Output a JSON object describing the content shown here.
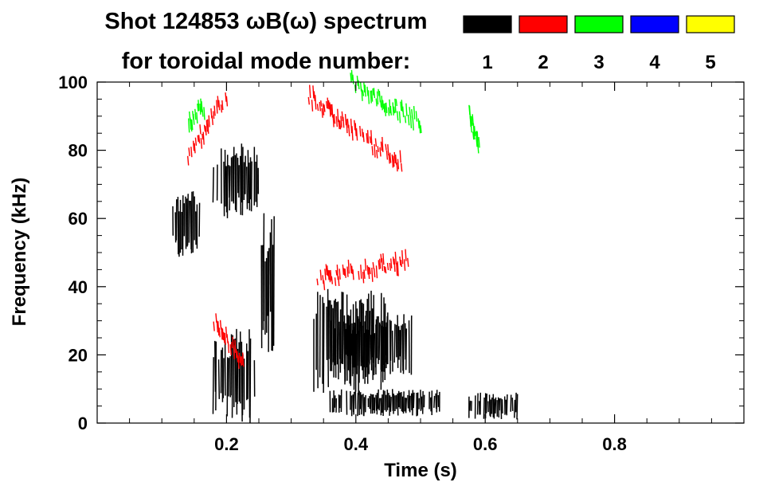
{
  "chart_data": {
    "type": "spectrogram",
    "title_line1": "Shot 124853 ωB(ω) spectrum",
    "title_line2": "for toroidal mode number:",
    "xlabel": "Time (s)",
    "ylabel": "Frequency (kHz)",
    "xlim": [
      0.0,
      1.0
    ],
    "ylim": [
      0,
      100
    ],
    "xticks": [
      0.2,
      0.4,
      0.6,
      0.8
    ],
    "xtick_labels": [
      "0.2",
      "0.4",
      "0.6",
      "0.8"
    ],
    "yticks": [
      0,
      20,
      40,
      60,
      80,
      100
    ],
    "ytick_labels": [
      "0",
      "20",
      "40",
      "60",
      "80",
      "100"
    ],
    "legend_position": "top-right",
    "legend": [
      {
        "mode": "1",
        "color": "#000000"
      },
      {
        "mode": "2",
        "color": "#ff0000"
      },
      {
        "mode": "3",
        "color": "#00ff00"
      },
      {
        "mode": "4",
        "color": "#0000ff"
      },
      {
        "mode": "5",
        "color": "#ffff00"
      }
    ],
    "features": [
      {
        "mode": "1",
        "kind": "band",
        "t": [
          0.115,
          0.16
        ],
        "f": [
          48,
          68
        ]
      },
      {
        "mode": "1",
        "kind": "band",
        "t": [
          0.18,
          0.25
        ],
        "f": [
          60,
          82
        ]
      },
      {
        "mode": "1",
        "kind": "band",
        "t": [
          0.18,
          0.245
        ],
        "f": [
          0,
          28
        ]
      },
      {
        "mode": "1",
        "kind": "band",
        "t": [
          0.25,
          0.275
        ],
        "f": [
          20,
          62
        ]
      },
      {
        "mode": "1",
        "kind": "band",
        "t": [
          0.335,
          0.45
        ],
        "f": [
          8,
          40
        ]
      },
      {
        "mode": "1",
        "kind": "band",
        "t": [
          0.36,
          0.49
        ],
        "f": [
          14,
          32
        ]
      },
      {
        "mode": "1",
        "kind": "band",
        "t": [
          0.36,
          0.535
        ],
        "f": [
          2,
          10
        ]
      },
      {
        "mode": "1",
        "kind": "band",
        "t": [
          0.575,
          0.655
        ],
        "f": [
          1,
          9
        ]
      },
      {
        "mode": "2",
        "kind": "chirp",
        "t": [
          0.14,
          0.2
        ],
        "f": [
          78,
          97
        ]
      },
      {
        "mode": "2",
        "kind": "chirp",
        "t": [
          0.18,
          0.225
        ],
        "f": [
          30,
          18
        ]
      },
      {
        "mode": "2",
        "kind": "chirp",
        "t": [
          0.34,
          0.48
        ],
        "f": [
          42,
          48
        ]
      },
      {
        "mode": "2",
        "kind": "chirp",
        "t": [
          0.325,
          0.47
        ],
        "f": [
          96,
          76
        ]
      },
      {
        "mode": "3",
        "kind": "chirp",
        "t": [
          0.39,
          0.5
        ],
        "f": [
          100,
          88
        ]
      },
      {
        "mode": "3",
        "kind": "chirp",
        "t": [
          0.575,
          0.59
        ],
        "f": [
          90,
          80
        ]
      },
      {
        "mode": "3",
        "kind": "chirp",
        "t": [
          0.14,
          0.165
        ],
        "f": [
          88,
          92
        ]
      }
    ]
  }
}
